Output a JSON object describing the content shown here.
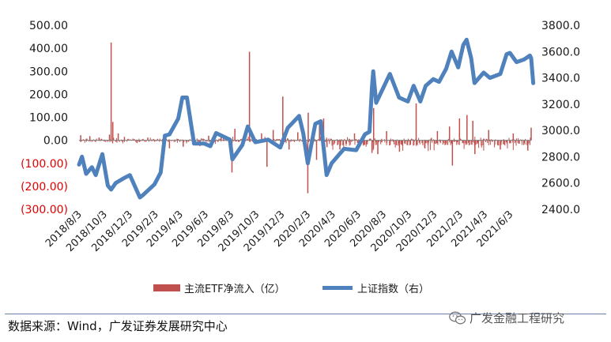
{
  "chart_data": {
    "type": "bar+line",
    "title": "",
    "left_axis": {
      "ylim": [
        -300,
        500
      ],
      "ticks": [
        "500.00",
        "400.00",
        "300.00",
        "200.00",
        "100.00",
        "0.00",
        "(100.00)",
        "(200.00)",
        "(300.00)"
      ],
      "tick_values": [
        500,
        400,
        300,
        200,
        100,
        0,
        -100,
        -200,
        -300
      ]
    },
    "right_axis": {
      "ylim": [
        2400,
        3800
      ],
      "ticks": [
        "3800.0",
        "3600.0",
        "3400.0",
        "3200.0",
        "3000.0",
        "2800.0",
        "2600.0",
        "2400.0"
      ],
      "tick_values": [
        3800,
        3600,
        3400,
        3200,
        3000,
        2800,
        2600,
        2400
      ]
    },
    "x_axis": {
      "ticks": [
        "2018/8/3",
        "2018/10/3",
        "2018/12/3",
        "2019/2/3",
        "2019/4/3",
        "2019/6/3",
        "2019/8/3",
        "2019/10/3",
        "2019/12/3",
        "2020/2/3",
        "2020/4/3",
        "2020/6/3",
        "2020/8/3",
        "2020/10/3",
        "2020/12/3",
        "2021/2/3",
        "2021/4/3",
        "2021/6/3"
      ],
      "start": "2018/8/3",
      "end": "2021/7/23"
    },
    "legend": {
      "placement": "bottom",
      "items": [
        {
          "label": "主流ETF净流入（亿）",
          "color": "#c0504d",
          "kind": "bar"
        },
        {
          "label": "上证指数（右）",
          "color": "#4f81bd",
          "kind": "line"
        }
      ]
    },
    "bar_series": {
      "name": "主流ETF净流入（亿）",
      "color": "#c0504d",
      "spikes": [
        {
          "date": "2018/8/7",
          "value": 22
        },
        {
          "date": "2018/8/29",
          "value": 18
        },
        {
          "date": "2018/9/20",
          "value": 12
        },
        {
          "date": "2018/10/15",
          "value": 25
        },
        {
          "date": "2018/10/19",
          "value": 425
        },
        {
          "date": "2018/10/23",
          "value": 80
        },
        {
          "date": "2018/11/5",
          "value": 30
        },
        {
          "date": "2018/11/20",
          "value": 15
        },
        {
          "date": "2018/12/20",
          "value": -12
        },
        {
          "date": "2019/1/15",
          "value": 10
        },
        {
          "date": "2019/2/25",
          "value": -20
        },
        {
          "date": "2019/3/8",
          "value": -35
        },
        {
          "date": "2019/4/10",
          "value": -28
        },
        {
          "date": "2019/5/6",
          "value": 30
        },
        {
          "date": "2019/5/20",
          "value": -25
        },
        {
          "date": "2019/6/10",
          "value": 20
        },
        {
          "date": "2019/7/10",
          "value": 20
        },
        {
          "date": "2019/8/5",
          "value": -140
        },
        {
          "date": "2019/8/12",
          "value": 50
        },
        {
          "date": "2019/9/16",
          "value": 385
        },
        {
          "date": "2019/10/15",
          "value": 30
        },
        {
          "date": "2019/10/28",
          "value": -115
        },
        {
          "date": "2019/11/12",
          "value": 45
        },
        {
          "date": "2019/12/5",
          "value": 190
        },
        {
          "date": "2019/12/20",
          "value": -40
        },
        {
          "date": "2020/1/10",
          "value": 35
        },
        {
          "date": "2020/2/3",
          "value": -230
        },
        {
          "date": "2020/2/4",
          "value": 120
        },
        {
          "date": "2020/2/24",
          "value": -85
        },
        {
          "date": "2020/3/2",
          "value": 75
        },
        {
          "date": "2020/3/12",
          "value": 95
        },
        {
          "date": "2020/3/20",
          "value": -30
        },
        {
          "date": "2020/4/20",
          "value": -40
        },
        {
          "date": "2020/5/25",
          "value": 30
        },
        {
          "date": "2020/7/6",
          "value": -55
        },
        {
          "date": "2020/7/10",
          "value": 140
        },
        {
          "date": "2020/7/20",
          "value": -60
        },
        {
          "date": "2020/8/10",
          "value": 40
        },
        {
          "date": "2020/9/10",
          "value": -50
        },
        {
          "date": "2020/10/20",
          "value": 160
        },
        {
          "date": "2020/11/10",
          "value": -35
        },
        {
          "date": "2020/12/10",
          "value": 40
        },
        {
          "date": "2021/1/8",
          "value": 60
        },
        {
          "date": "2021/1/15",
          "value": -110
        },
        {
          "date": "2021/2/1",
          "value": 95
        },
        {
          "date": "2021/2/19",
          "value": 110
        },
        {
          "date": "2021/3/5",
          "value": 85
        },
        {
          "date": "2021/3/10",
          "value": -60
        },
        {
          "date": "2021/4/12",
          "value": 45
        },
        {
          "date": "2021/5/10",
          "value": -40
        },
        {
          "date": "2021/6/10",
          "value": 30
        },
        {
          "date": "2021/7/15",
          "value": -45
        },
        {
          "date": "2021/7/23",
          "value": 55
        }
      ]
    },
    "line_series": {
      "name": "上证指数（右）",
      "color": "#4f81bd",
      "points": [
        [
          "2018/8/3",
          2740
        ],
        [
          "2018/8/10",
          2800
        ],
        [
          "2018/8/20",
          2670
        ],
        [
          "2018/9/3",
          2720
        ],
        [
          "2018/9/12",
          2660
        ],
        [
          "2018/9/28",
          2820
        ],
        [
          "2018/10/11",
          2580
        ],
        [
          "2018/10/19",
          2550
        ],
        [
          "2018/10/30",
          2600
        ],
        [
          "2018/11/20",
          2640
        ],
        [
          "2018/12/3",
          2660
        ],
        [
          "2018/12/27",
          2490
        ],
        [
          "2019/1/4",
          2510
        ],
        [
          "2019/1/31",
          2590
        ],
        [
          "2019/2/15",
          2680
        ],
        [
          "2019/2/25",
          2960
        ],
        [
          "2019/3/8",
          2970
        ],
        [
          "2019/3/29",
          3090
        ],
        [
          "2019/4/8",
          3250
        ],
        [
          "2019/4/19",
          3250
        ],
        [
          "2019/5/6",
          2900
        ],
        [
          "2019/5/31",
          2900
        ],
        [
          "2019/6/14",
          2880
        ],
        [
          "2019/6/28",
          2980
        ],
        [
          "2019/7/31",
          2930
        ],
        [
          "2019/8/6",
          2780
        ],
        [
          "2019/8/30",
          2890
        ],
        [
          "2019/9/12",
          3030
        ],
        [
          "2019/9/30",
          2910
        ],
        [
          "2019/10/31",
          2930
        ],
        [
          "2019/11/29",
          2870
        ],
        [
          "2019/12/17",
          3020
        ],
        [
          "2020/1/13",
          3110
        ],
        [
          "2020/1/23",
          2980
        ],
        [
          "2020/2/3",
          2750
        ],
        [
          "2020/2/21",
          3050
        ],
        [
          "2020/3/5",
          3070
        ],
        [
          "2020/3/19",
          2660
        ],
        [
          "2020/3/31",
          2750
        ],
        [
          "2020/4/30",
          2860
        ],
        [
          "2020/5/29",
          2850
        ],
        [
          "2020/6/19",
          2970
        ],
        [
          "2020/6/30",
          2990
        ],
        [
          "2020/7/6",
          3330
        ],
        [
          "2020/7/9",
          3450
        ],
        [
          "2020/7/16",
          3210
        ],
        [
          "2020/7/31",
          3310
        ],
        [
          "2020/8/18",
          3430
        ],
        [
          "2020/9/9",
          3250
        ],
        [
          "2020/9/30",
          3220
        ],
        [
          "2020/10/14",
          3340
        ],
        [
          "2020/10/30",
          3220
        ],
        [
          "2020/11/12",
          3340
        ],
        [
          "2020/11/30",
          3390
        ],
        [
          "2020/12/14",
          3370
        ],
        [
          "2020/12/31",
          3470
        ],
        [
          "2021/1/13",
          3600
        ],
        [
          "2021/1/29",
          3480
        ],
        [
          "2021/2/10",
          3650
        ],
        [
          "2021/2/18",
          3690
        ],
        [
          "2021/3/1",
          3550
        ],
        [
          "2021/3/9",
          3360
        ],
        [
          "2021/3/31",
          3440
        ],
        [
          "2021/4/15",
          3400
        ],
        [
          "2021/5/10",
          3430
        ],
        [
          "2021/5/25",
          3580
        ],
        [
          "2021/6/2",
          3590
        ],
        [
          "2021/6/18",
          3520
        ],
        [
          "2021/7/6",
          3540
        ],
        [
          "2021/7/20",
          3570
        ],
        [
          "2021/7/23",
          3550
        ],
        [
          "2021/7/28",
          3360
        ]
      ]
    }
  },
  "source_text": "数据来源：Wind，广发证券发展研究中心",
  "watermark_text": "广发金融工程研究",
  "colors": {
    "bar": "#c0504d",
    "line": "#4f81bd",
    "negative_tick": "#e00000",
    "footer_rule": "#6b7fa8"
  }
}
